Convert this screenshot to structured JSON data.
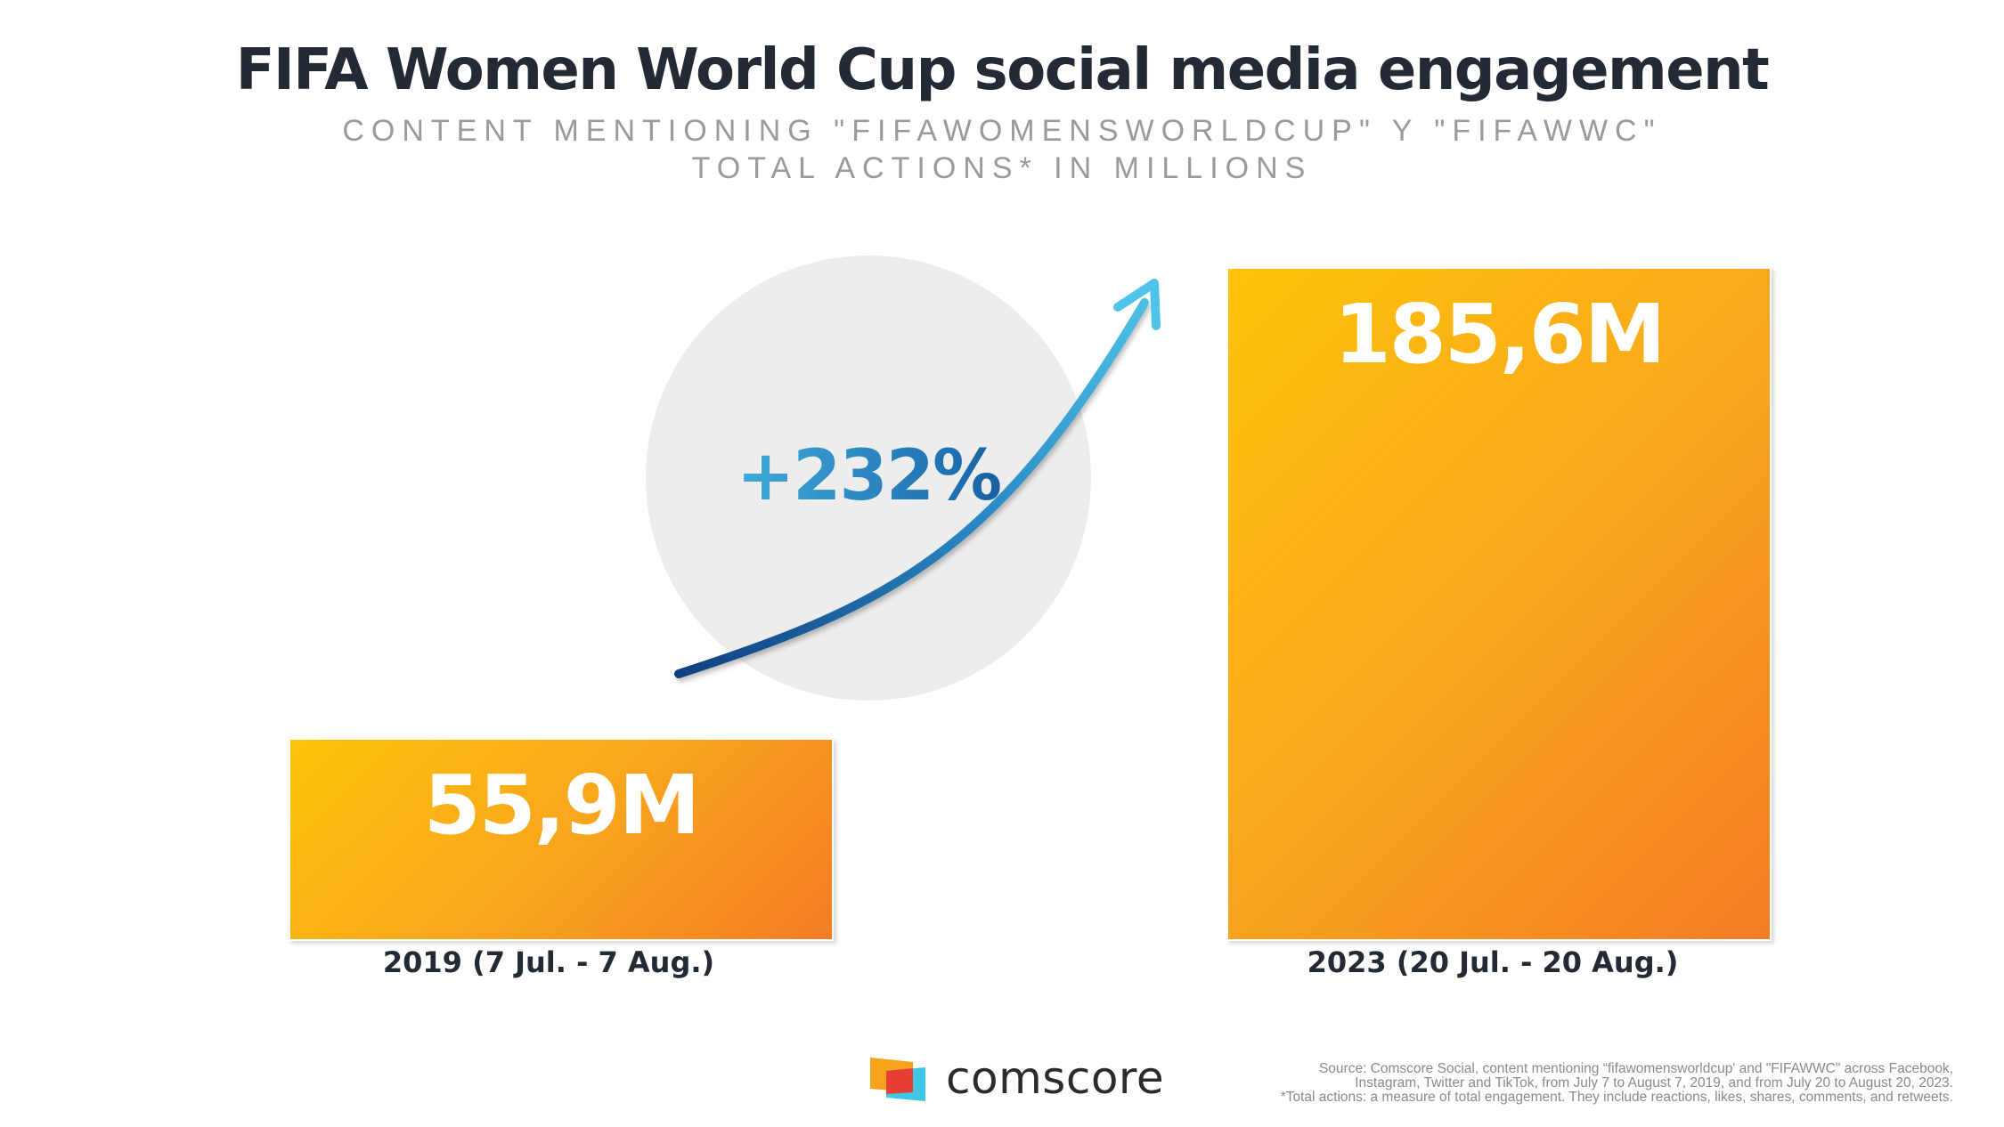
{
  "chart_data": {
    "type": "bar",
    "title": "FIFA Women World Cup social media engagement",
    "subtitle": [
      "CONTENT MENTIONING \"FIFAWOMENSWORLDCUP\" Y \"FIFAWWC\"",
      "TOTAL ACTIONS* IN MILLIONS"
    ],
    "categories": [
      "2019 (7 Jul. - 7 Aug.)",
      "2023 (20 Jul. - 20 Aug.)"
    ],
    "values": [
      55.9,
      185.6
    ],
    "data_labels": [
      "55,9M",
      "185,6M"
    ],
    "ylim": [
      0,
      185.6
    ],
    "grid": false,
    "annotation": "+232%",
    "colors": {
      "bar_start": "#fdc30a",
      "bar_end": "#f47c24",
      "arrow_start": "#0f3f80",
      "arrow_end": "#4fc3e8"
    }
  },
  "footer": {
    "brand": "comscore",
    "source_lines": [
      "Source: Comscore Social, content mentioning “fifawomensworldcup' and \"FIFAWWC\" across Facebook,",
      "Instagram, Twitter and TikTok, from July 7 to August 7, 2019, and from July 20 to August 20, 2023.",
      "*Total actions: a measure of total engagement. They include reactions, likes, shares, comments, and retweets."
    ]
  }
}
